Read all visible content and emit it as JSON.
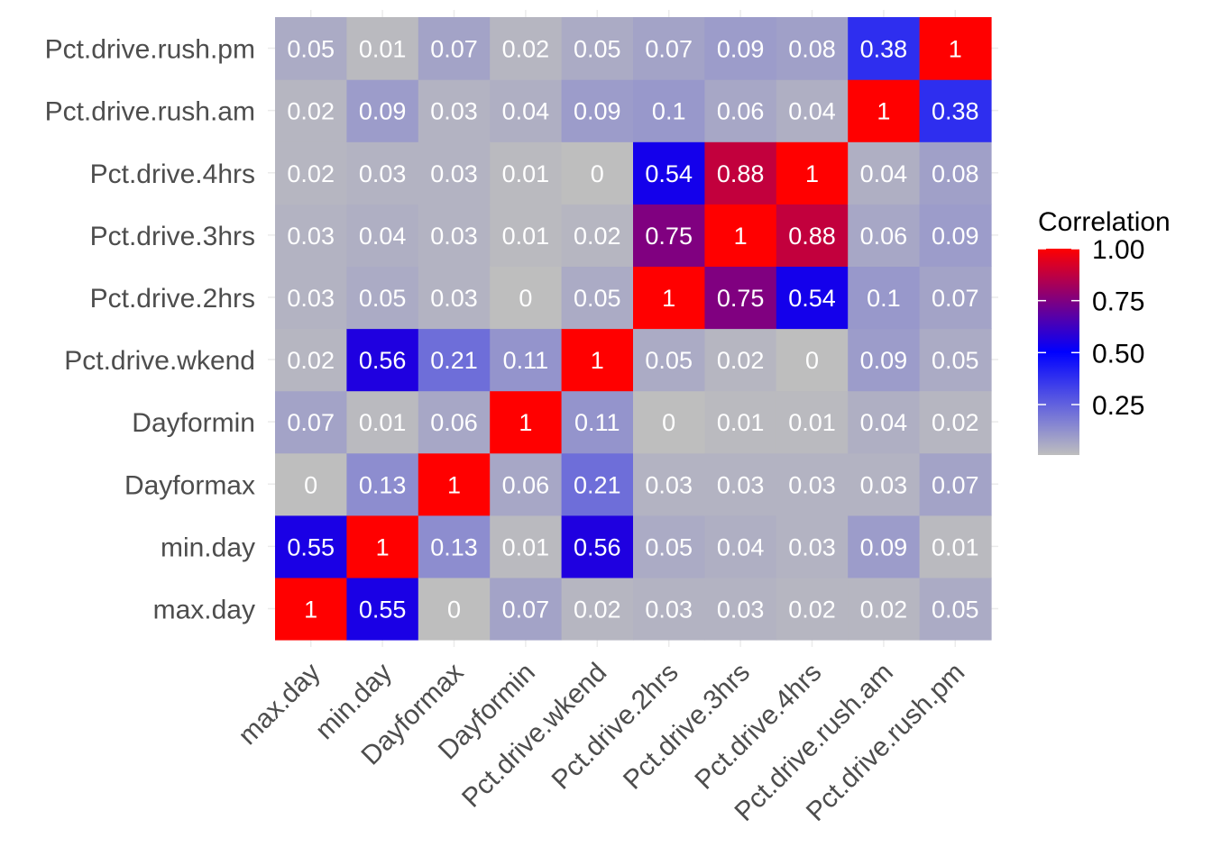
{
  "chart_data": {
    "type": "heatmap",
    "variables": [
      "max.day",
      "min.day",
      "Dayformax",
      "Dayformin",
      "Pct.drive.wkend",
      "Pct.drive.2hrs",
      "Pct.drive.3hrs",
      "Pct.drive.4hrs",
      "Pct.drive.rush.am",
      "Pct.drive.rush.pm"
    ],
    "matrix": [
      [
        1,
        0.55,
        0,
        0.07,
        0.02,
        0.03,
        0.03,
        0.02,
        0.02,
        0.05
      ],
      [
        0.55,
        1,
        0.13,
        0.01,
        0.56,
        0.05,
        0.04,
        0.03,
        0.09,
        0.01
      ],
      [
        0,
        0.13,
        1,
        0.06,
        0.21,
        0.03,
        0.03,
        0.03,
        0.03,
        0.07
      ],
      [
        0.07,
        0.01,
        0.06,
        1,
        0.11,
        0,
        0.01,
        0.01,
        0.04,
        0.02
      ],
      [
        0.02,
        0.56,
        0.21,
        0.11,
        1,
        0.05,
        0.02,
        0,
        0.09,
        0.05
      ],
      [
        0.03,
        0.05,
        0.03,
        0,
        0.05,
        1,
        0.75,
        0.54,
        0.1,
        0.07
      ],
      [
        0.03,
        0.04,
        0.03,
        0.01,
        0.02,
        0.75,
        1,
        0.88,
        0.06,
        0.09
      ],
      [
        0.02,
        0.03,
        0.03,
        0.01,
        0,
        0.54,
        0.88,
        1,
        0.04,
        0.08
      ],
      [
        0.02,
        0.09,
        0.03,
        0.04,
        0.09,
        0.1,
        0.06,
        0.04,
        1,
        0.38
      ],
      [
        0.05,
        0.01,
        0.07,
        0.02,
        0.05,
        0.07,
        0.09,
        0.08,
        0.38,
        1
      ]
    ],
    "legend": {
      "title": "Correlation",
      "ticks": [
        1.0,
        0.75,
        0.5,
        0.25
      ],
      "tick_labels": [
        "1.00",
        "0.75",
        "0.50",
        "0.25"
      ],
      "range": [
        0,
        1
      ],
      "position": "right"
    },
    "colors": {
      "low": "#bebebe",
      "mid": "#0000ff",
      "high": "#ff0000",
      "midpoint": 0.5
    },
    "cell_text_color": "#ffffff",
    "tick_text_color": "#4d4d4d",
    "grid": true
  }
}
